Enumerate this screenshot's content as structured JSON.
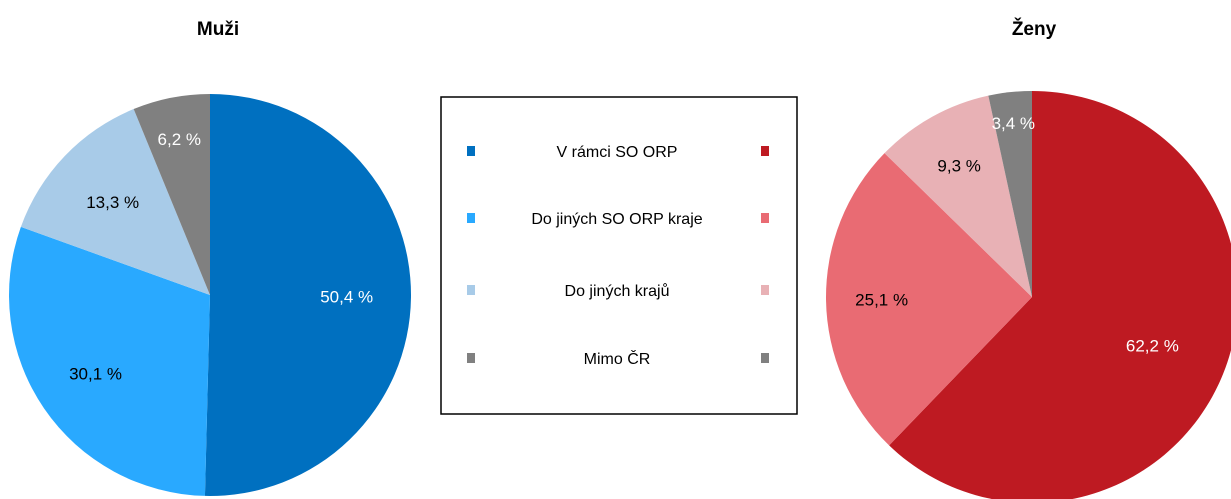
{
  "chart_data": [
    {
      "type": "pie",
      "title": "Muži",
      "categories": [
        "V rámci SO ORP",
        "Do jiných SO ORP kraje",
        "Do jiných krajů",
        "Mimo ČR"
      ],
      "values": [
        50.4,
        30.1,
        13.3,
        6.2
      ],
      "labels": [
        "50,4 %",
        "30,1 %",
        "13,3 %",
        "6,2 %"
      ],
      "colors": [
        "#0070c0",
        "#29a9ff",
        "#a8cbe8",
        "#808080"
      ],
      "label_colors": [
        "#ffffff",
        "#000000",
        "#000000",
        "#ffffff"
      ]
    },
    {
      "type": "pie",
      "title": "Ženy",
      "categories": [
        "V rámci SO ORP",
        "Do jiných SO ORP kraje",
        "Do jiných krajů",
        "Mimo ČR"
      ],
      "values": [
        62.2,
        25.1,
        9.3,
        3.4
      ],
      "labels": [
        "62,2 %",
        "25,1 %",
        "9,3 %",
        "3,4 %"
      ],
      "colors": [
        "#be1a22",
        "#e96b73",
        "#e8b1b5",
        "#808080"
      ],
      "label_colors": [
        "#ffffff",
        "#000000",
        "#000000",
        "#ffffff"
      ]
    }
  ],
  "legend": {
    "placement": "center",
    "items": [
      "V rámci SO ORP",
      "Do jiných SO ORP kraje",
      "Do jiných krajů",
      "Mimo ČR"
    ]
  }
}
